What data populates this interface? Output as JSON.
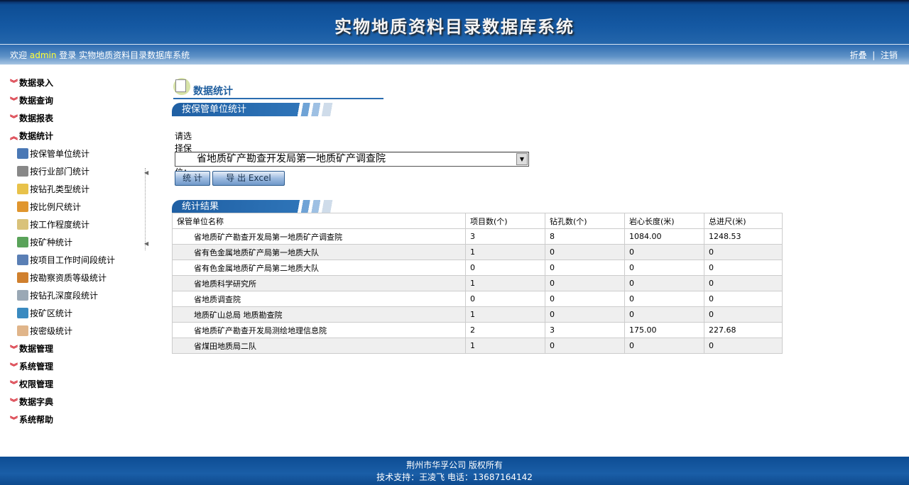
{
  "header": {
    "title": "实物地质资料目录数据库系统"
  },
  "topbar": {
    "welcome": "欢迎",
    "user": "admin",
    "login_text": "登录 实物地质资料目录数据库系统",
    "collapse": "折叠",
    "sep": "|",
    "logout": "注销"
  },
  "sidebar": {
    "groups": [
      {
        "label": "数据录入",
        "expanded": false
      },
      {
        "label": "数据查询",
        "expanded": false
      },
      {
        "label": "数据报表",
        "expanded": false
      },
      {
        "label": "数据统计",
        "expanded": true,
        "items": [
          {
            "label": "按保管单位统计",
            "icon": "table-icon",
            "color": "#4a78b5"
          },
          {
            "label": "按行业部门统计",
            "icon": "card-icon",
            "color": "#888888"
          },
          {
            "label": "按钻孔类型统计",
            "icon": "drill-icon",
            "color": "#e8c24a"
          },
          {
            "label": "按比例尺统计",
            "icon": "ruler-icon",
            "color": "#e0962e"
          },
          {
            "label": "按工作程度统计",
            "icon": "form-icon",
            "color": "#d9c27a"
          },
          {
            "label": "按矿种统计",
            "icon": "network-icon",
            "color": "#5aa35a"
          },
          {
            "label": "按项目工作时间段统计",
            "icon": "calendar-icon",
            "color": "#5a7fb5"
          },
          {
            "label": "按勘察资质等级统计",
            "icon": "medal-icon",
            "color": "#d0802e"
          },
          {
            "label": "按钻孔深度段统计",
            "icon": "anchor-icon",
            "color": "#9aa8b5"
          },
          {
            "label": "按矿区统计",
            "icon": "map-icon",
            "color": "#3a8ac0"
          },
          {
            "label": "按密级统计",
            "icon": "box-icon",
            "color": "#e0b58a"
          }
        ]
      },
      {
        "label": "数据管理",
        "expanded": false
      },
      {
        "label": "系统管理",
        "expanded": false
      },
      {
        "label": "权限管理",
        "expanded": false
      },
      {
        "label": "数据字典",
        "expanded": false
      },
      {
        "label": "系统帮助",
        "expanded": false
      }
    ]
  },
  "main": {
    "page_title": "数据统计",
    "section_title": "按保管单位统计",
    "select_label": "请选择保管单位：",
    "select_value": "省地质矿产勘查开发局第一地质矿产调查院",
    "stat_button": "统 计",
    "export_button": "导 出 Excel",
    "result_title": "统计结果",
    "table": {
      "headers": [
        "保管单位名称",
        "项目数(个)",
        "钻孔数(个)",
        "岩心长度(米)",
        "总进尺(米)"
      ],
      "rows": [
        [
          "省地质矿产勘查开发局第一地质矿产调查院",
          "3",
          "8",
          "1084.00",
          "1248.53"
        ],
        [
          "省有色金属地质矿产局第一地质大队",
          "1",
          "0",
          "0",
          "0"
        ],
        [
          "省有色金属地质矿产局第二地质大队",
          "0",
          "0",
          "0",
          "0"
        ],
        [
          "省地质科学研究所",
          "1",
          "0",
          "0",
          "0"
        ],
        [
          "省地质调查院",
          "0",
          "0",
          "0",
          "0"
        ],
        [
          "地质矿山总局 地质勘查院",
          "1",
          "0",
          "0",
          "0"
        ],
        [
          "省地质矿产勘查开发局测绘地理信息院",
          "2",
          "3",
          "175.00",
          "227.68"
        ],
        [
          "省煤田地质局二队",
          "1",
          "0",
          "0",
          "0"
        ]
      ]
    }
  },
  "footer": {
    "line1": "荆州市华孚公司 版权所有",
    "line2": "技术支持：王凌飞 电话：13687164142"
  }
}
